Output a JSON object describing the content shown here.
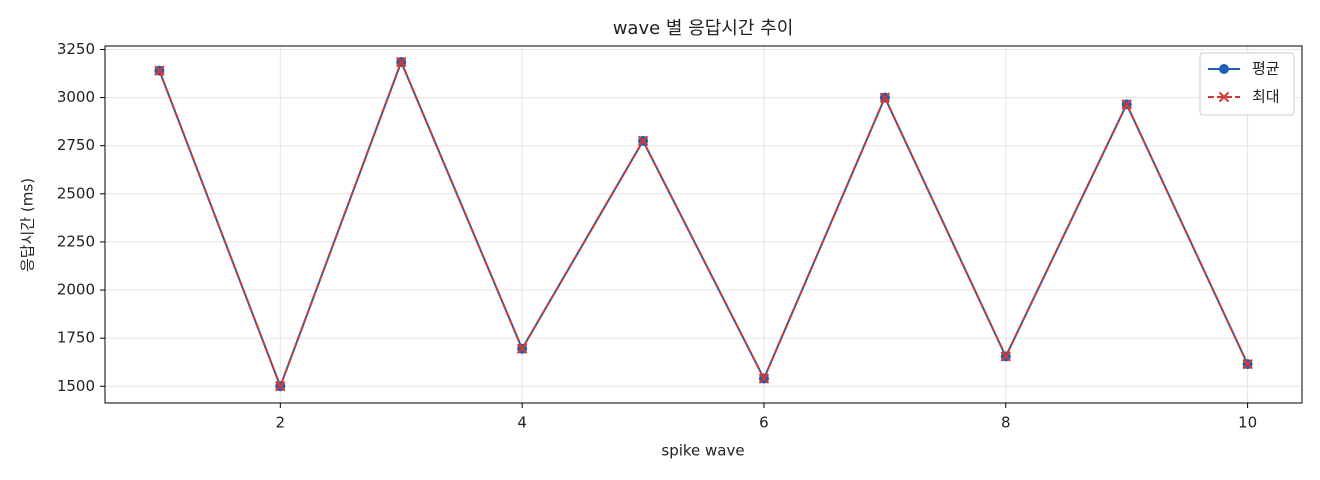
{
  "chart_data": {
    "type": "line",
    "title": "wave 별 응답시간 추이",
    "x_label": "spike wave",
    "y_label": "응답시간 (ms)",
    "x": [
      1,
      2,
      3,
      4,
      5,
      6,
      7,
      8,
      9,
      10
    ],
    "series": [
      {
        "name": "평균",
        "color": "#1f5fb4",
        "marker": "o",
        "linestyle": "solid",
        "values": [
          3140,
          1500,
          3185,
          1695,
          2775,
          1540,
          3000,
          1655,
          2965,
          1615
        ]
      },
      {
        "name": "최대",
        "color": "#d03a35",
        "marker": "x",
        "linestyle": "dashed",
        "values": [
          3140,
          1500,
          3185,
          1695,
          2775,
          1540,
          3000,
          1655,
          2965,
          1615
        ]
      }
    ],
    "xlim": [
      0.55,
      10.45
    ],
    "ylim": [
      1413,
      3268
    ],
    "xticks": [
      2,
      4,
      6,
      8,
      10
    ],
    "yticks": [
      1500,
      1750,
      2000,
      2250,
      2500,
      2750,
      3000,
      3250
    ],
    "grid": true,
    "legend": "upper-right"
  }
}
